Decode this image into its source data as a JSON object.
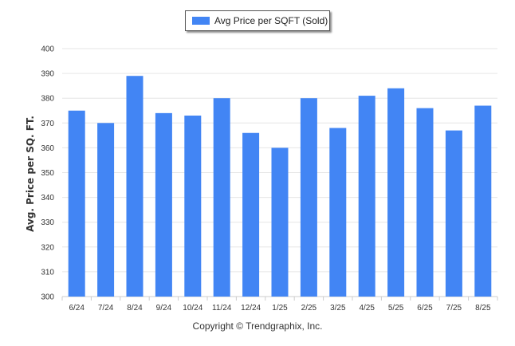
{
  "legend": {
    "label": "Avg Price per SQFT (Sold)"
  },
  "footer": {
    "copyright": "Copyright © Trendgraphix, Inc."
  },
  "colors": {
    "bar": "#4285f4",
    "grid": "#e6e6e6",
    "axis": "#cccccc"
  },
  "chart_data": {
    "type": "bar",
    "title": "",
    "xlabel": "",
    "ylabel": "Avg. Price per SQ. FT.",
    "categories": [
      "6/24",
      "7/24",
      "8/24",
      "9/24",
      "10/24",
      "11/24",
      "12/24",
      "1/25",
      "2/25",
      "3/25",
      "4/25",
      "5/25",
      "6/25",
      "7/25",
      "8/25"
    ],
    "series": [
      {
        "name": "Avg Price per SQFT (Sold)",
        "values": [
          375,
          370,
          389,
          374,
          373,
          380,
          366,
          360,
          380,
          368,
          381,
          384,
          376,
          367,
          377
        ]
      }
    ],
    "ylim": [
      300,
      400
    ],
    "yticks": [
      300,
      310,
      320,
      330,
      340,
      350,
      360,
      370,
      380,
      390,
      400
    ],
    "grid": true,
    "legend_position": "top-center"
  }
}
